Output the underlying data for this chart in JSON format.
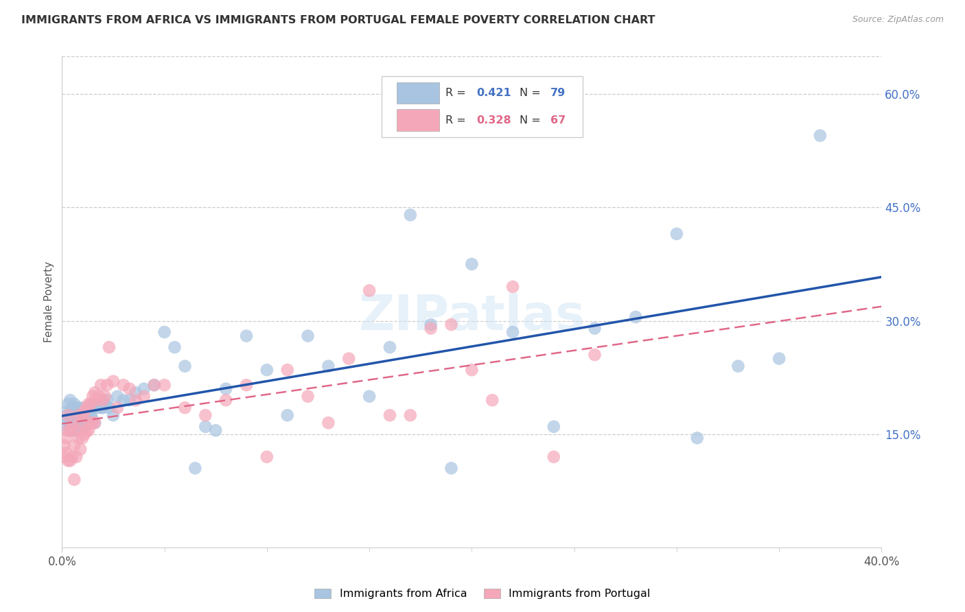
{
  "title": "IMMIGRANTS FROM AFRICA VS IMMIGRANTS FROM PORTUGAL FEMALE POVERTY CORRELATION CHART",
  "source": "Source: ZipAtlas.com",
  "ylabel": "Female Poverty",
  "x_min": 0.0,
  "x_max": 0.4,
  "y_min": 0.0,
  "y_max": 0.65,
  "africa_R": 0.421,
  "africa_N": 79,
  "portugal_R": 0.328,
  "portugal_N": 67,
  "africa_face_color": "#a8c4e0",
  "africa_edge_color": "#a8c4e0",
  "portugal_face_color": "#f4a7b9",
  "portugal_edge_color": "#f4a7b9",
  "africa_line_color": "#2255aa",
  "portugal_line_color": "#e06888",
  "legend_label_africa": "Immigrants from Africa",
  "legend_label_portugal": "Immigrants from Portugal",
  "watermark": "ZIPatlas",
  "grid_color": "#cccccc",
  "y_tick_pos": [
    0.15,
    0.3,
    0.45,
    0.6
  ],
  "y_tick_labels": [
    "15.0%",
    "30.0%",
    "45.0%",
    "60.0%"
  ],
  "africa_scatter_x": [
    0.001,
    0.002,
    0.002,
    0.003,
    0.003,
    0.003,
    0.004,
    0.004,
    0.004,
    0.005,
    0.005,
    0.005,
    0.006,
    0.006,
    0.006,
    0.007,
    0.007,
    0.007,
    0.008,
    0.008,
    0.008,
    0.009,
    0.009,
    0.01,
    0.01,
    0.01,
    0.011,
    0.011,
    0.012,
    0.012,
    0.013,
    0.013,
    0.014,
    0.014,
    0.015,
    0.015,
    0.016,
    0.016,
    0.017,
    0.018,
    0.019,
    0.02,
    0.021,
    0.022,
    0.023,
    0.025,
    0.027,
    0.03,
    0.033,
    0.036,
    0.04,
    0.045,
    0.05,
    0.055,
    0.06,
    0.065,
    0.07,
    0.075,
    0.08,
    0.09,
    0.1,
    0.11,
    0.12,
    0.13,
    0.15,
    0.16,
    0.17,
    0.18,
    0.19,
    0.2,
    0.22,
    0.24,
    0.26,
    0.28,
    0.3,
    0.31,
    0.33,
    0.35,
    0.37
  ],
  "africa_scatter_y": [
    0.165,
    0.17,
    0.18,
    0.155,
    0.175,
    0.19,
    0.16,
    0.175,
    0.195,
    0.155,
    0.17,
    0.185,
    0.16,
    0.175,
    0.19,
    0.155,
    0.17,
    0.185,
    0.16,
    0.17,
    0.185,
    0.165,
    0.175,
    0.16,
    0.17,
    0.185,
    0.165,
    0.175,
    0.165,
    0.18,
    0.165,
    0.18,
    0.175,
    0.19,
    0.17,
    0.185,
    0.165,
    0.19,
    0.185,
    0.195,
    0.185,
    0.185,
    0.19,
    0.195,
    0.185,
    0.175,
    0.2,
    0.195,
    0.195,
    0.205,
    0.21,
    0.215,
    0.285,
    0.265,
    0.24,
    0.105,
    0.16,
    0.155,
    0.21,
    0.28,
    0.235,
    0.175,
    0.28,
    0.24,
    0.2,
    0.265,
    0.44,
    0.295,
    0.105,
    0.375,
    0.285,
    0.16,
    0.29,
    0.305,
    0.415,
    0.145,
    0.24,
    0.25,
    0.545
  ],
  "portugal_scatter_x": [
    0.001,
    0.001,
    0.002,
    0.002,
    0.003,
    0.003,
    0.003,
    0.004,
    0.004,
    0.005,
    0.005,
    0.006,
    0.006,
    0.007,
    0.007,
    0.008,
    0.008,
    0.009,
    0.009,
    0.01,
    0.01,
    0.011,
    0.011,
    0.012,
    0.012,
    0.013,
    0.013,
    0.014,
    0.014,
    0.015,
    0.015,
    0.016,
    0.016,
    0.017,
    0.018,
    0.019,
    0.02,
    0.021,
    0.022,
    0.023,
    0.025,
    0.027,
    0.03,
    0.033,
    0.036,
    0.04,
    0.045,
    0.05,
    0.06,
    0.07,
    0.08,
    0.09,
    0.1,
    0.11,
    0.12,
    0.13,
    0.14,
    0.15,
    0.16,
    0.17,
    0.18,
    0.19,
    0.2,
    0.21,
    0.22,
    0.24,
    0.26
  ],
  "portugal_scatter_y": [
    0.12,
    0.135,
    0.125,
    0.145,
    0.115,
    0.155,
    0.175,
    0.115,
    0.155,
    0.12,
    0.16,
    0.09,
    0.135,
    0.12,
    0.155,
    0.145,
    0.175,
    0.13,
    0.165,
    0.145,
    0.175,
    0.15,
    0.18,
    0.155,
    0.185,
    0.155,
    0.19,
    0.165,
    0.19,
    0.165,
    0.2,
    0.165,
    0.205,
    0.195,
    0.2,
    0.215,
    0.195,
    0.2,
    0.215,
    0.265,
    0.22,
    0.185,
    0.215,
    0.21,
    0.195,
    0.2,
    0.215,
    0.215,
    0.185,
    0.175,
    0.195,
    0.215,
    0.12,
    0.235,
    0.2,
    0.165,
    0.25,
    0.34,
    0.175,
    0.175,
    0.29,
    0.295,
    0.235,
    0.195,
    0.345,
    0.12,
    0.255
  ]
}
